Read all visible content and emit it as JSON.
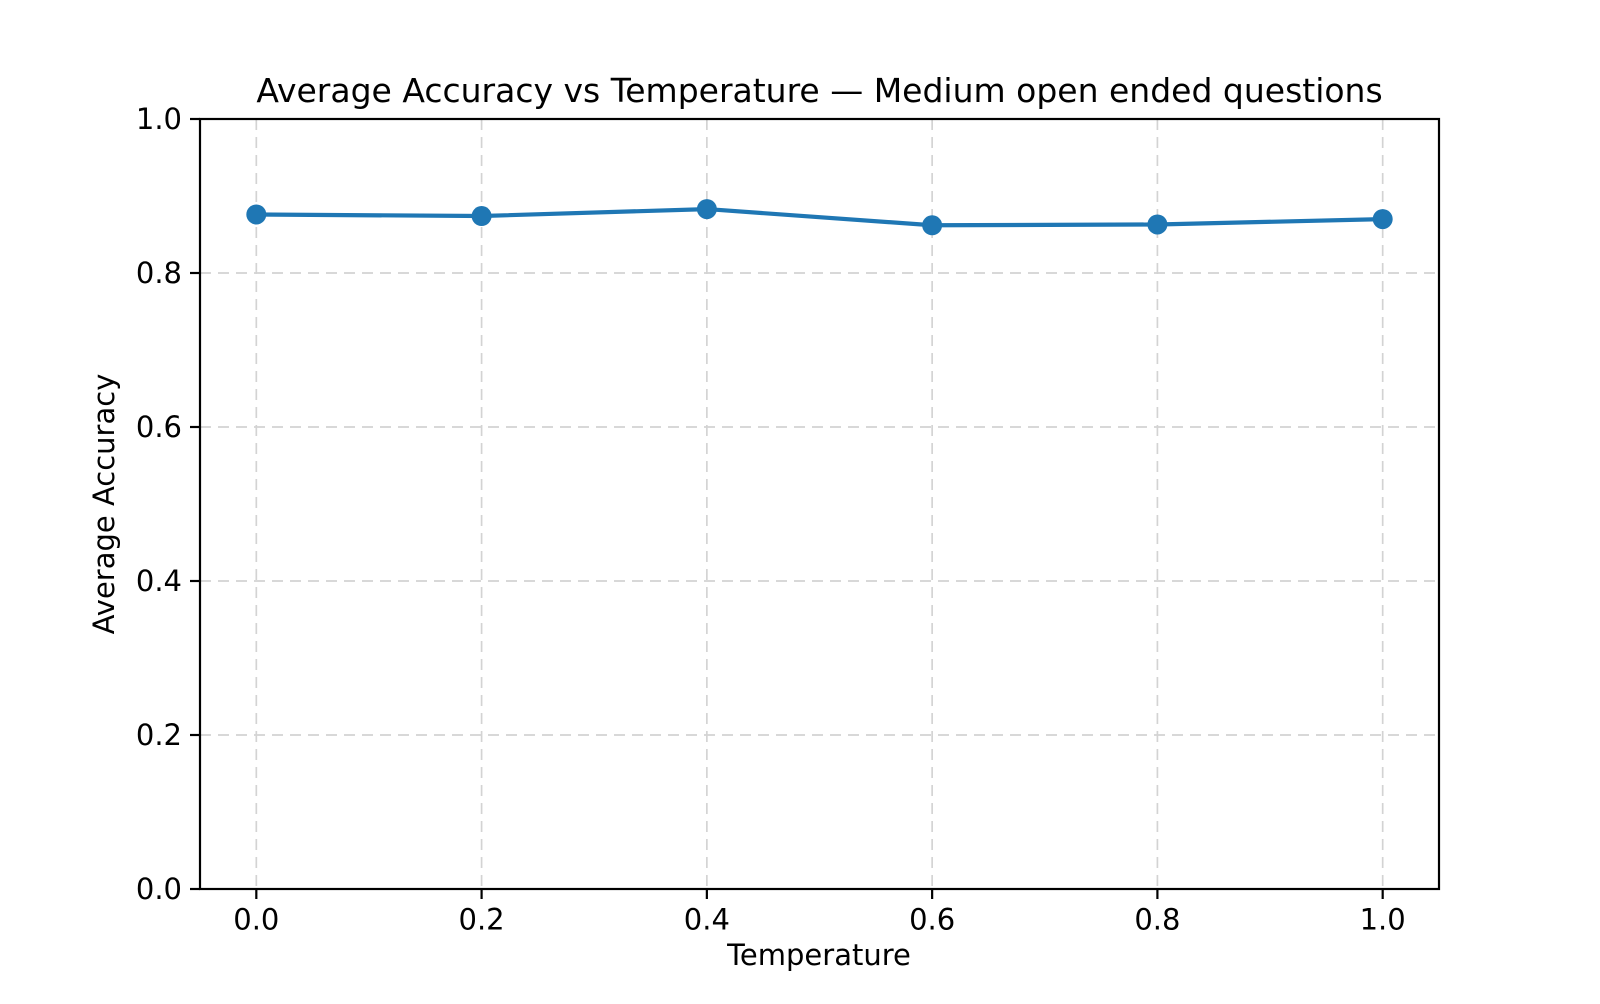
{
  "chart_data": {
    "type": "line",
    "title": "Average Accuracy vs Temperature — Medium open ended questions",
    "xlabel": "Temperature",
    "ylabel": "Average Accuracy",
    "x": [
      0.0,
      0.2,
      0.4,
      0.6,
      0.8,
      1.0
    ],
    "y": [
      0.876,
      0.874,
      0.883,
      0.862,
      0.863,
      0.87
    ],
    "xtick_labels": [
      "0.0",
      "0.2",
      "0.4",
      "0.6",
      "0.8",
      "1.0"
    ],
    "xtick_values": [
      0.0,
      0.2,
      0.4,
      0.6,
      0.8,
      1.0
    ],
    "ytick_labels": [
      "0.0",
      "0.2",
      "0.4",
      "0.6",
      "0.8",
      "1.0"
    ],
    "ytick_values": [
      0.0,
      0.2,
      0.4,
      0.6,
      0.8,
      1.0
    ],
    "xlim": [
      -0.05,
      1.05
    ],
    "ylim": [
      0.0,
      1.0
    ],
    "grid": true,
    "grid_style": "dashed",
    "grid_color": "#d3d3d3",
    "line_color": "#1f77b4",
    "marker": "o",
    "marker_color": "#1f77b4",
    "spine_color": "#000000",
    "background": "#ffffff",
    "legend": "none"
  }
}
